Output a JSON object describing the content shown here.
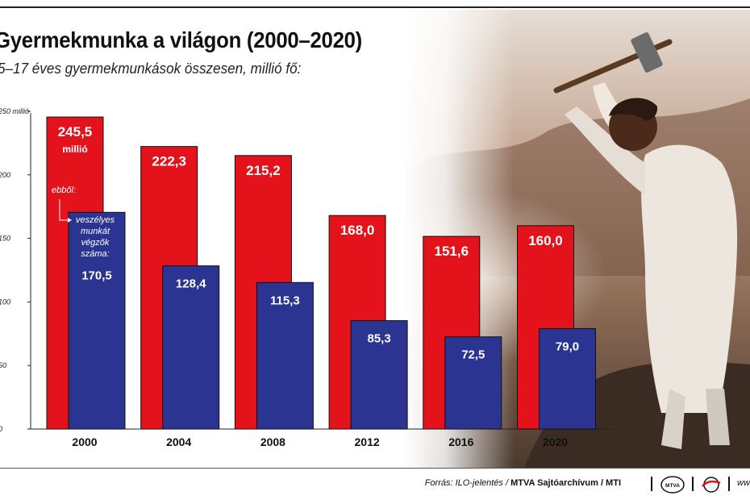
{
  "title": "Gyermekmunka a világon (2000–2020)",
  "subtitle": "5–17 éves gyermekmunkások összesen, millió fő:",
  "chart_data": {
    "type": "bar",
    "categories": [
      "2000",
      "2004",
      "2008",
      "2012",
      "2016",
      "2020"
    ],
    "series": [
      {
        "name": "összesen",
        "values": [
          245.5,
          222.3,
          215.2,
          168.0,
          151.6,
          160.0
        ],
        "labels": [
          "245,5",
          "222,3",
          "215,2",
          "168,0",
          "151,6",
          "160,0"
        ],
        "color": "#e3121b"
      },
      {
        "name": "veszélyes munkát végzők száma",
        "values": [
          170.5,
          128.4,
          115.3,
          85.3,
          72.5,
          79.0
        ],
        "labels": [
          "170,5",
          "128,4",
          "115,3",
          "85,3",
          "72,5",
          "79,0"
        ],
        "color": "#2b3491"
      }
    ],
    "ylim": [
      0,
      250
    ],
    "yticks": [
      0,
      50,
      100,
      150,
      200,
      250
    ],
    "ytick_labels": [
      "0",
      "50",
      "100",
      "150",
      "200",
      "250 millió"
    ],
    "annotations": {
      "first_bar_unit": "millió",
      "of_which": "ebből:",
      "hazardous_label": [
        "veszélyes",
        "munkát",
        "végzők",
        "száma:"
      ]
    },
    "grid": false,
    "legend": "none"
  },
  "footer": {
    "source_prefix": "Forrás: ILO-jelentés / ",
    "agency": "MTVA Sajtóarchívum / MTI",
    "logo1": "MTVA",
    "web_prefix": "ww"
  },
  "icons": [
    "mtva-logo-icon",
    "mti-logo-icon"
  ],
  "colors": {
    "red": "#e3121b",
    "blue": "#2b3491"
  }
}
